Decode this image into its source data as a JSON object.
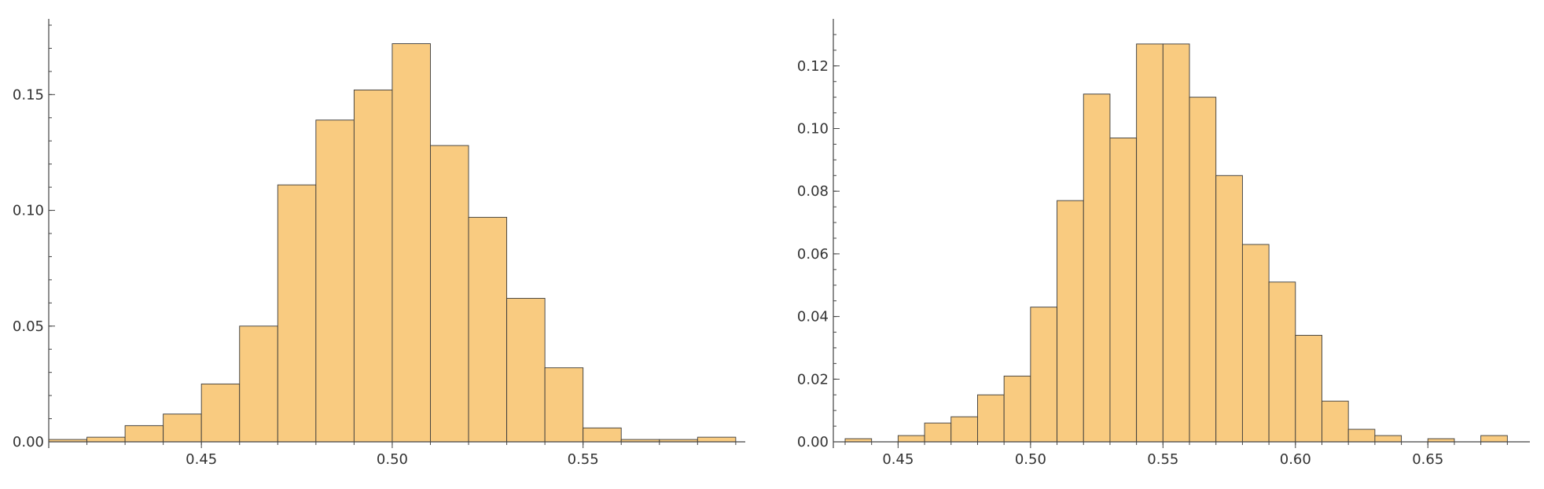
{
  "colors": {
    "bar_fill": "#f9cb80",
    "bar_stroke": "#3a3a3a",
    "axis": "#444444",
    "text": "#333333"
  },
  "chart_data": [
    {
      "type": "bar",
      "title": "",
      "xlabel": "",
      "ylabel": "",
      "grid": false,
      "xlim": [
        0.41,
        0.5925
      ],
      "ylim": [
        0,
        0.18
      ],
      "bin_edges": [
        0.41,
        0.42,
        0.43,
        0.44,
        0.45,
        0.46,
        0.47,
        0.48,
        0.49,
        0.5,
        0.51,
        0.52,
        0.53,
        0.54,
        0.55,
        0.56,
        0.57,
        0.58,
        0.59
      ],
      "values": [
        0.001,
        0.002,
        0.007,
        0.012,
        0.025,
        0.05,
        0.111,
        0.139,
        0.152,
        0.172,
        0.128,
        0.097,
        0.062,
        0.032,
        0.006,
        0.001,
        0.001,
        0.002
      ],
      "x_ticks": [
        0.45,
        0.5,
        0.55
      ],
      "x_tick_labels": [
        "0.45",
        "0.50",
        "0.55"
      ],
      "y_ticks": [
        0.0,
        0.05,
        0.1,
        0.15
      ],
      "y_tick_labels": [
        "0.00",
        "0.05",
        "0.10",
        "0.15"
      ],
      "y_minor_step": 0.01
    },
    {
      "type": "bar",
      "title": "",
      "xlabel": "",
      "ylabel": "",
      "grid": false,
      "xlim": [
        0.43,
        0.6885
      ],
      "ylim": [
        0,
        0.133
      ],
      "bin_edges": [
        0.43,
        0.44,
        0.45,
        0.46,
        0.47,
        0.48,
        0.49,
        0.5,
        0.51,
        0.52,
        0.53,
        0.54,
        0.55,
        0.56,
        0.57,
        0.58,
        0.59,
        0.6,
        0.61,
        0.62,
        0.63,
        0.64,
        0.65,
        0.66,
        0.67,
        0.68
      ],
      "values": [
        0.001,
        0,
        0.002,
        0.006,
        0.008,
        0.015,
        0.021,
        0.043,
        0.077,
        0.111,
        0.097,
        0.127,
        0.127,
        0.11,
        0.085,
        0.063,
        0.051,
        0.034,
        0.013,
        0.004,
        0.002,
        0,
        0.001,
        0,
        0.002
      ],
      "x_ticks": [
        0.45,
        0.5,
        0.55,
        0.6,
        0.65
      ],
      "x_tick_labels": [
        "0.45",
        "0.50",
        "0.55",
        "0.60",
        "0.65"
      ],
      "y_ticks": [
        0.0,
        0.02,
        0.04,
        0.06,
        0.08,
        0.1,
        0.12
      ],
      "y_tick_labels": [
        "0.00",
        "0.02",
        "0.04",
        "0.06",
        "0.08",
        "0.10",
        "0.12"
      ],
      "y_minor_step": 0.005
    }
  ]
}
